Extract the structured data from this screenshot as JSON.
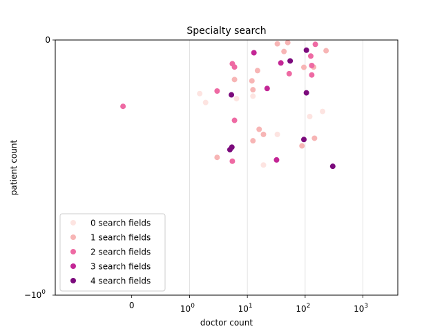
{
  "chart_data": {
    "type": "scatter",
    "title": "Specialty search",
    "xlabel": "doctor count",
    "ylabel": "patient count",
    "x_scale": "symlog",
    "x_ticks": [
      {
        "value": 0,
        "label": "0",
        "exp": ""
      },
      {
        "value": 1,
        "label": "10",
        "exp": "0"
      },
      {
        "value": 10,
        "label": "10",
        "exp": "1"
      },
      {
        "value": 100,
        "label": "10",
        "exp": "2"
      },
      {
        "value": 1000,
        "label": "10",
        "exp": "3"
      }
    ],
    "y_ticks": [
      {
        "label": "0",
        "exp": ""
      },
      {
        "label": "−10",
        "exp": "0"
      }
    ],
    "x_grid": true,
    "legend_position": "lower-left",
    "colors": [
      "#fde4e1",
      "#f7b5b5",
      "#ee6aa3",
      "#c32695",
      "#7b0a7c"
    ],
    "series": [
      {
        "name": "0 search fields",
        "points": [
          [
            1.5,
            -0.21
          ],
          [
            1.9,
            -0.245
          ],
          [
            6.5,
            -0.23
          ],
          [
            12.5,
            -0.22
          ],
          [
            33,
            -0.37
          ],
          [
            19,
            -0.49
          ],
          [
            120,
            -0.3
          ],
          [
            200,
            -0.28
          ]
        ]
      },
      {
        "name": "1 search fields",
        "points": [
          [
            33,
            -0.015
          ],
          [
            50,
            -0.01
          ],
          [
            43,
            -0.045
          ],
          [
            95,
            -0.107
          ],
          [
            140,
            -0.106
          ],
          [
            230,
            -0.042
          ],
          [
            15,
            -0.12
          ],
          [
            6,
            -0.155
          ],
          [
            12,
            -0.16
          ],
          [
            12.5,
            -0.195
          ],
          [
            16,
            -0.35
          ],
          [
            19,
            -0.37
          ],
          [
            12.5,
            -0.395
          ],
          [
            3,
            -0.46
          ],
          [
            88,
            -0.415
          ],
          [
            145,
            -0.385
          ]
        ]
      },
      {
        "name": "2 search fields",
        "points": [
          [
            -0.15,
            -0.26
          ],
          [
            5.5,
            -0.093
          ],
          [
            6,
            -0.106
          ],
          [
            3,
            -0.2
          ],
          [
            6,
            -0.315
          ],
          [
            5.5,
            -0.475
          ],
          [
            53,
            -0.132
          ],
          [
            125,
            -0.063
          ],
          [
            130,
            -0.1
          ],
          [
            130,
            -0.137
          ],
          [
            150,
            -0.017
          ]
        ]
      },
      {
        "name": "3 search fields",
        "points": [
          [
            13,
            -0.05
          ],
          [
            38,
            -0.09
          ],
          [
            22,
            -0.19
          ],
          [
            32,
            -0.47
          ]
        ]
      },
      {
        "name": "4 search fields",
        "points": [
          [
            105,
            -0.04
          ],
          [
            55,
            -0.082
          ],
          [
            5.3,
            -0.215
          ],
          [
            105,
            -0.207
          ],
          [
            95,
            -0.39
          ],
          [
            5.4,
            -0.42
          ],
          [
            5,
            -0.43
          ],
          [
            300,
            -0.495
          ]
        ]
      }
    ]
  }
}
